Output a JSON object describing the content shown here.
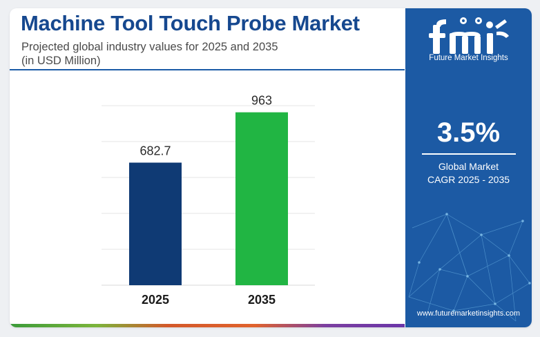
{
  "header": {
    "title": "Machine Tool Touch Probe Market",
    "subtitle_line1": "Projected global industry values for 2025 and 2035",
    "subtitle_line2": "(in USD Million)"
  },
  "chart_data": {
    "type": "bar",
    "categories": [
      "2025",
      "2035"
    ],
    "values": [
      682.7,
      963
    ],
    "value_labels": [
      "682.7",
      "963"
    ],
    "colors": [
      "#0f3a74",
      "#21b543"
    ],
    "ylim": [
      0,
      1000
    ],
    "grid": true
  },
  "sidebar": {
    "brand": "Future Market Insights",
    "cagr_value": "3.5%",
    "cagr_label_line1": "Global Market",
    "cagr_label_line2": "CAGR 2025 - 2035",
    "url": "www.futuremarketinsights.com"
  },
  "colors": {
    "title": "#16488f",
    "panel": "#1c5aa4"
  },
  "icons": [
    "fmi-logo",
    "network-graphic"
  ]
}
